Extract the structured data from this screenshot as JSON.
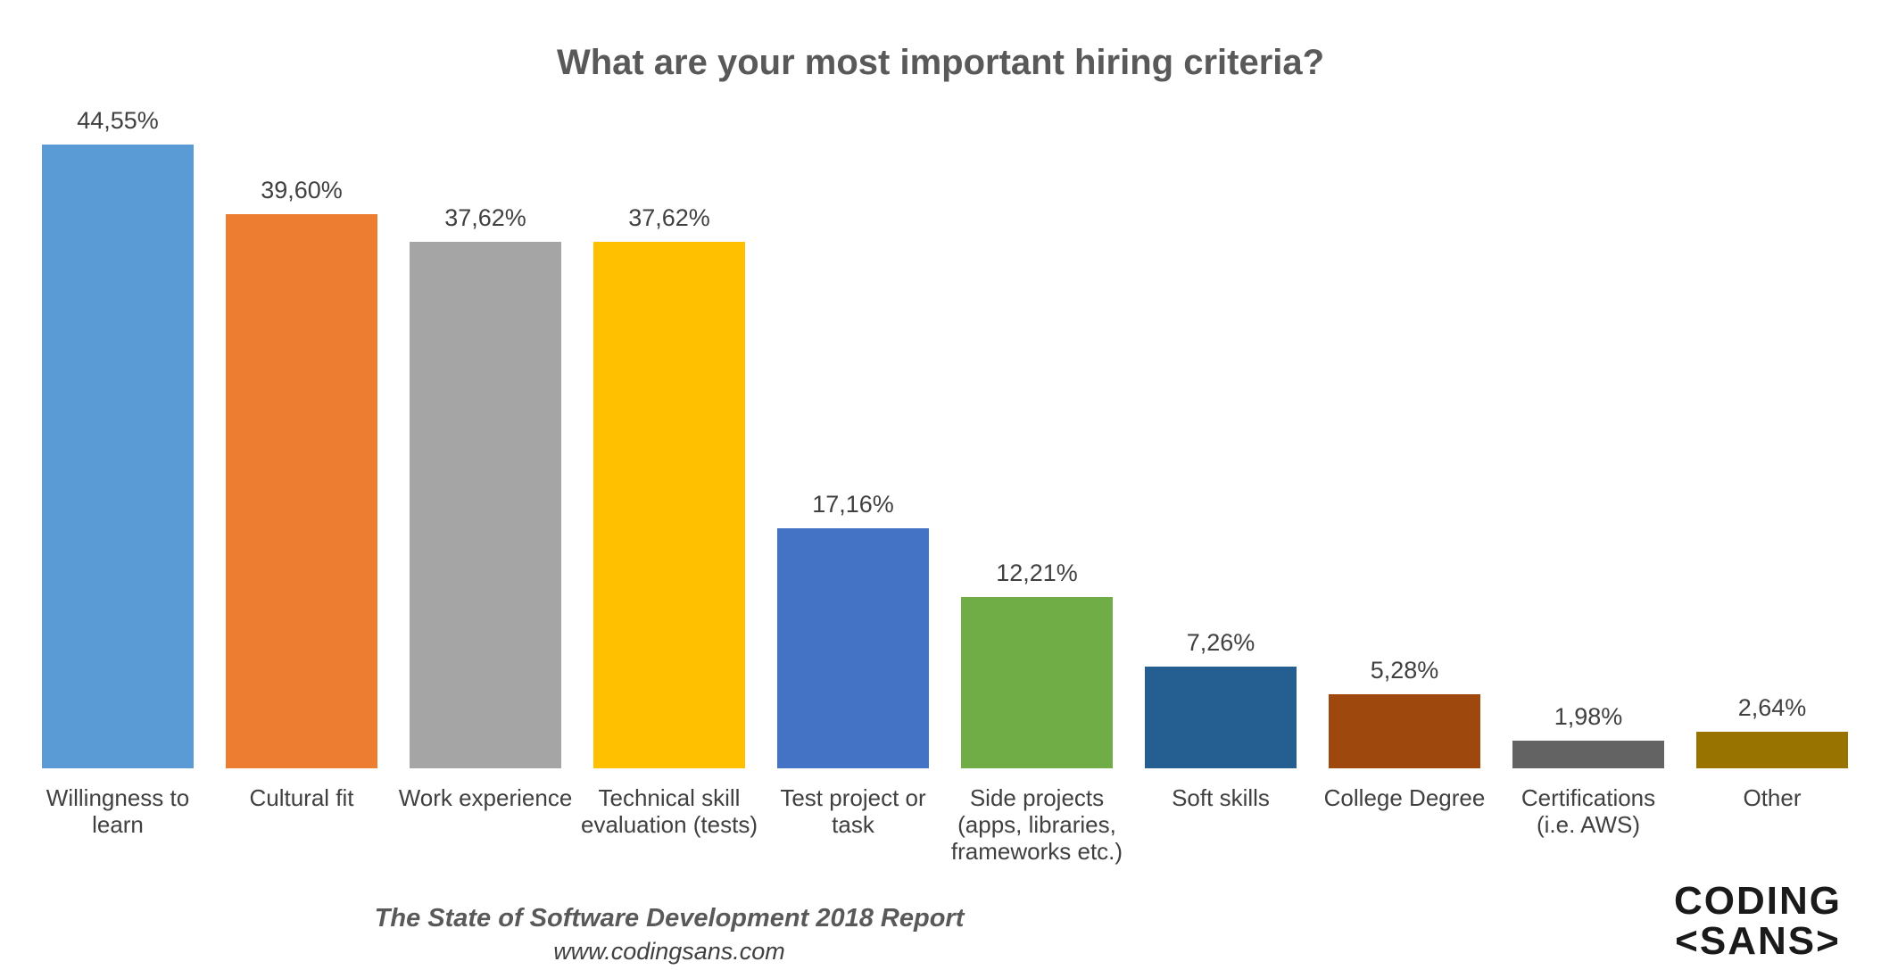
{
  "chart_data": {
    "type": "bar",
    "title": "What are your most important hiring criteria?",
    "categories": [
      "Willingness to learn",
      "Cultural fit",
      "Work experience",
      "Technical skill evaluation (tests)",
      "Test project or task",
      "Side projects (apps, libraries, frameworks etc.)",
      "Soft skills",
      "College Degree",
      "Certifications (i.e. AWS)",
      "Other"
    ],
    "values": [
      44.55,
      39.6,
      37.62,
      37.62,
      17.16,
      12.21,
      7.26,
      5.28,
      1.98,
      2.64
    ],
    "value_labels": [
      "44,55%",
      "39,60%",
      "37,62%",
      "37,62%",
      "17,16%",
      "12,21%",
      "7,26%",
      "5,28%",
      "1,98%",
      "2,64%"
    ],
    "colors": [
      "#5b9bd5",
      "#ed7d31",
      "#a5a5a5",
      "#ffc000",
      "#4472c4",
      "#70ad47",
      "#255e91",
      "#9e480e",
      "#636363",
      "#997300"
    ],
    "footer": "The State of Software Development 2018 Report",
    "url": "www.codingsans.com",
    "logo": [
      "CODING",
      "<SANS>"
    ]
  }
}
